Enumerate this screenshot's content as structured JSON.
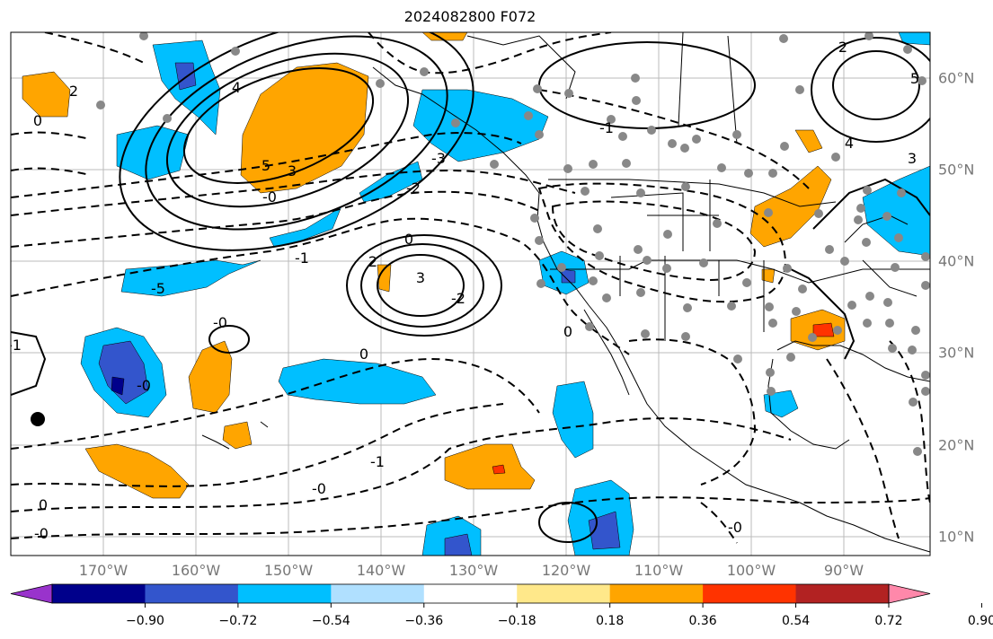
{
  "title": "2024082800 F072",
  "lon_labels": [
    "170°W",
    "160°W",
    "150°W",
    "140°W",
    "130°W",
    "120°W",
    "110°W",
    "100°W",
    "90°W"
  ],
  "lat_labels": [
    "60°N",
    "50°N",
    "40°N",
    "30°N",
    "20°N",
    "10°N"
  ],
  "colorbar": {
    "ticks": [
      "−0.90",
      "−0.72",
      "−0.54",
      "−0.36",
      "−0.18",
      "0.18",
      "0.36",
      "0.54",
      "0.72",
      "0.90"
    ],
    "colors": [
      "#9933cc",
      "#00008b",
      "#3355cc",
      "#00bfff",
      "#b0e0ff",
      "#ffffff",
      "#ffe88a",
      "#ffa500",
      "#ff3300",
      "#b22222",
      "#ff88aa"
    ]
  },
  "colors": {
    "positive_anomaly": "#ffa500",
    "negative_anomaly": "#00bfff",
    "station_marker": "#888888",
    "gridline": "#bbbbbb"
  },
  "contour_labels": [
    {
      "text": "2"
    },
    {
      "text": "0"
    },
    {
      "text": "5"
    },
    {
      "text": "4"
    },
    {
      "text": "3"
    },
    {
      "text": "-0"
    },
    {
      "text": "-2"
    },
    {
      "text": "-3"
    },
    {
      "text": "-1"
    },
    {
      "text": "-5"
    },
    {
      "text": "2"
    },
    {
      "text": "3"
    },
    {
      "text": "0"
    },
    {
      "text": "-0"
    },
    {
      "text": "-1"
    },
    {
      "text": "-2"
    },
    {
      "text": "-0"
    },
    {
      "text": "0"
    },
    {
      "text": "-1"
    },
    {
      "text": "-0"
    },
    {
      "text": "0"
    },
    {
      "text": "-0"
    },
    {
      "text": "5"
    },
    {
      "text": "2"
    },
    {
      "text": "3"
    },
    {
      "text": "4"
    },
    {
      "text": "0"
    },
    {
      "text": "-1"
    },
    {
      "text": "-0"
    }
  ]
}
